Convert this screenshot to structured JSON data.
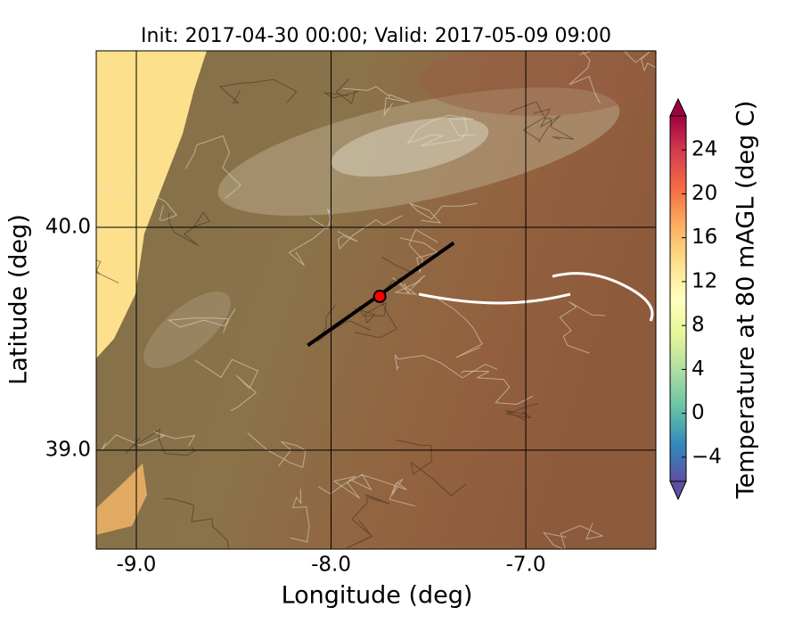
{
  "chart_data": {
    "type": "map",
    "title": "Init: 2017-04-30 00:00; Valid: 2017-05-09 09:00",
    "xlabel": "Longitude (deg)",
    "ylabel": "Latitude (deg)",
    "xlim": [
      -9.206,
      -6.332
    ],
    "ylim": [
      38.556,
      40.792
    ],
    "xticks": [
      {
        "value": -9,
        "label": "-9.0"
      },
      {
        "value": -8,
        "label": "-8.0"
      },
      {
        "value": -7,
        "label": "-7.0"
      }
    ],
    "yticks": [
      {
        "value": 39,
        "label": "39.0"
      },
      {
        "value": 40,
        "label": "40.0"
      }
    ],
    "grid": true,
    "cross_section": {
      "x": [
        -8.12,
        -7.37
      ],
      "y": [
        39.47,
        39.93
      ],
      "color": "#000000"
    },
    "point": {
      "x": -7.75,
      "y": 39.69,
      "color": "#ff0000"
    },
    "colorbar": {
      "label": "Temperature at 80 mAGL (deg C)",
      "lim": [
        -6.2,
        27.1
      ],
      "ticks": [
        {
          "value": -4,
          "label": "−4"
        },
        0,
        4,
        8,
        12,
        16,
        20,
        24
      ],
      "colors": [
        "#5e4fa2",
        "#3288bd",
        "#66c2a5",
        "#abdda4",
        "#e6f598",
        "#ffffbf",
        "#fee08b",
        "#fdae61",
        "#f46d43",
        "#d53e4f",
        "#9e0142"
      ]
    }
  }
}
